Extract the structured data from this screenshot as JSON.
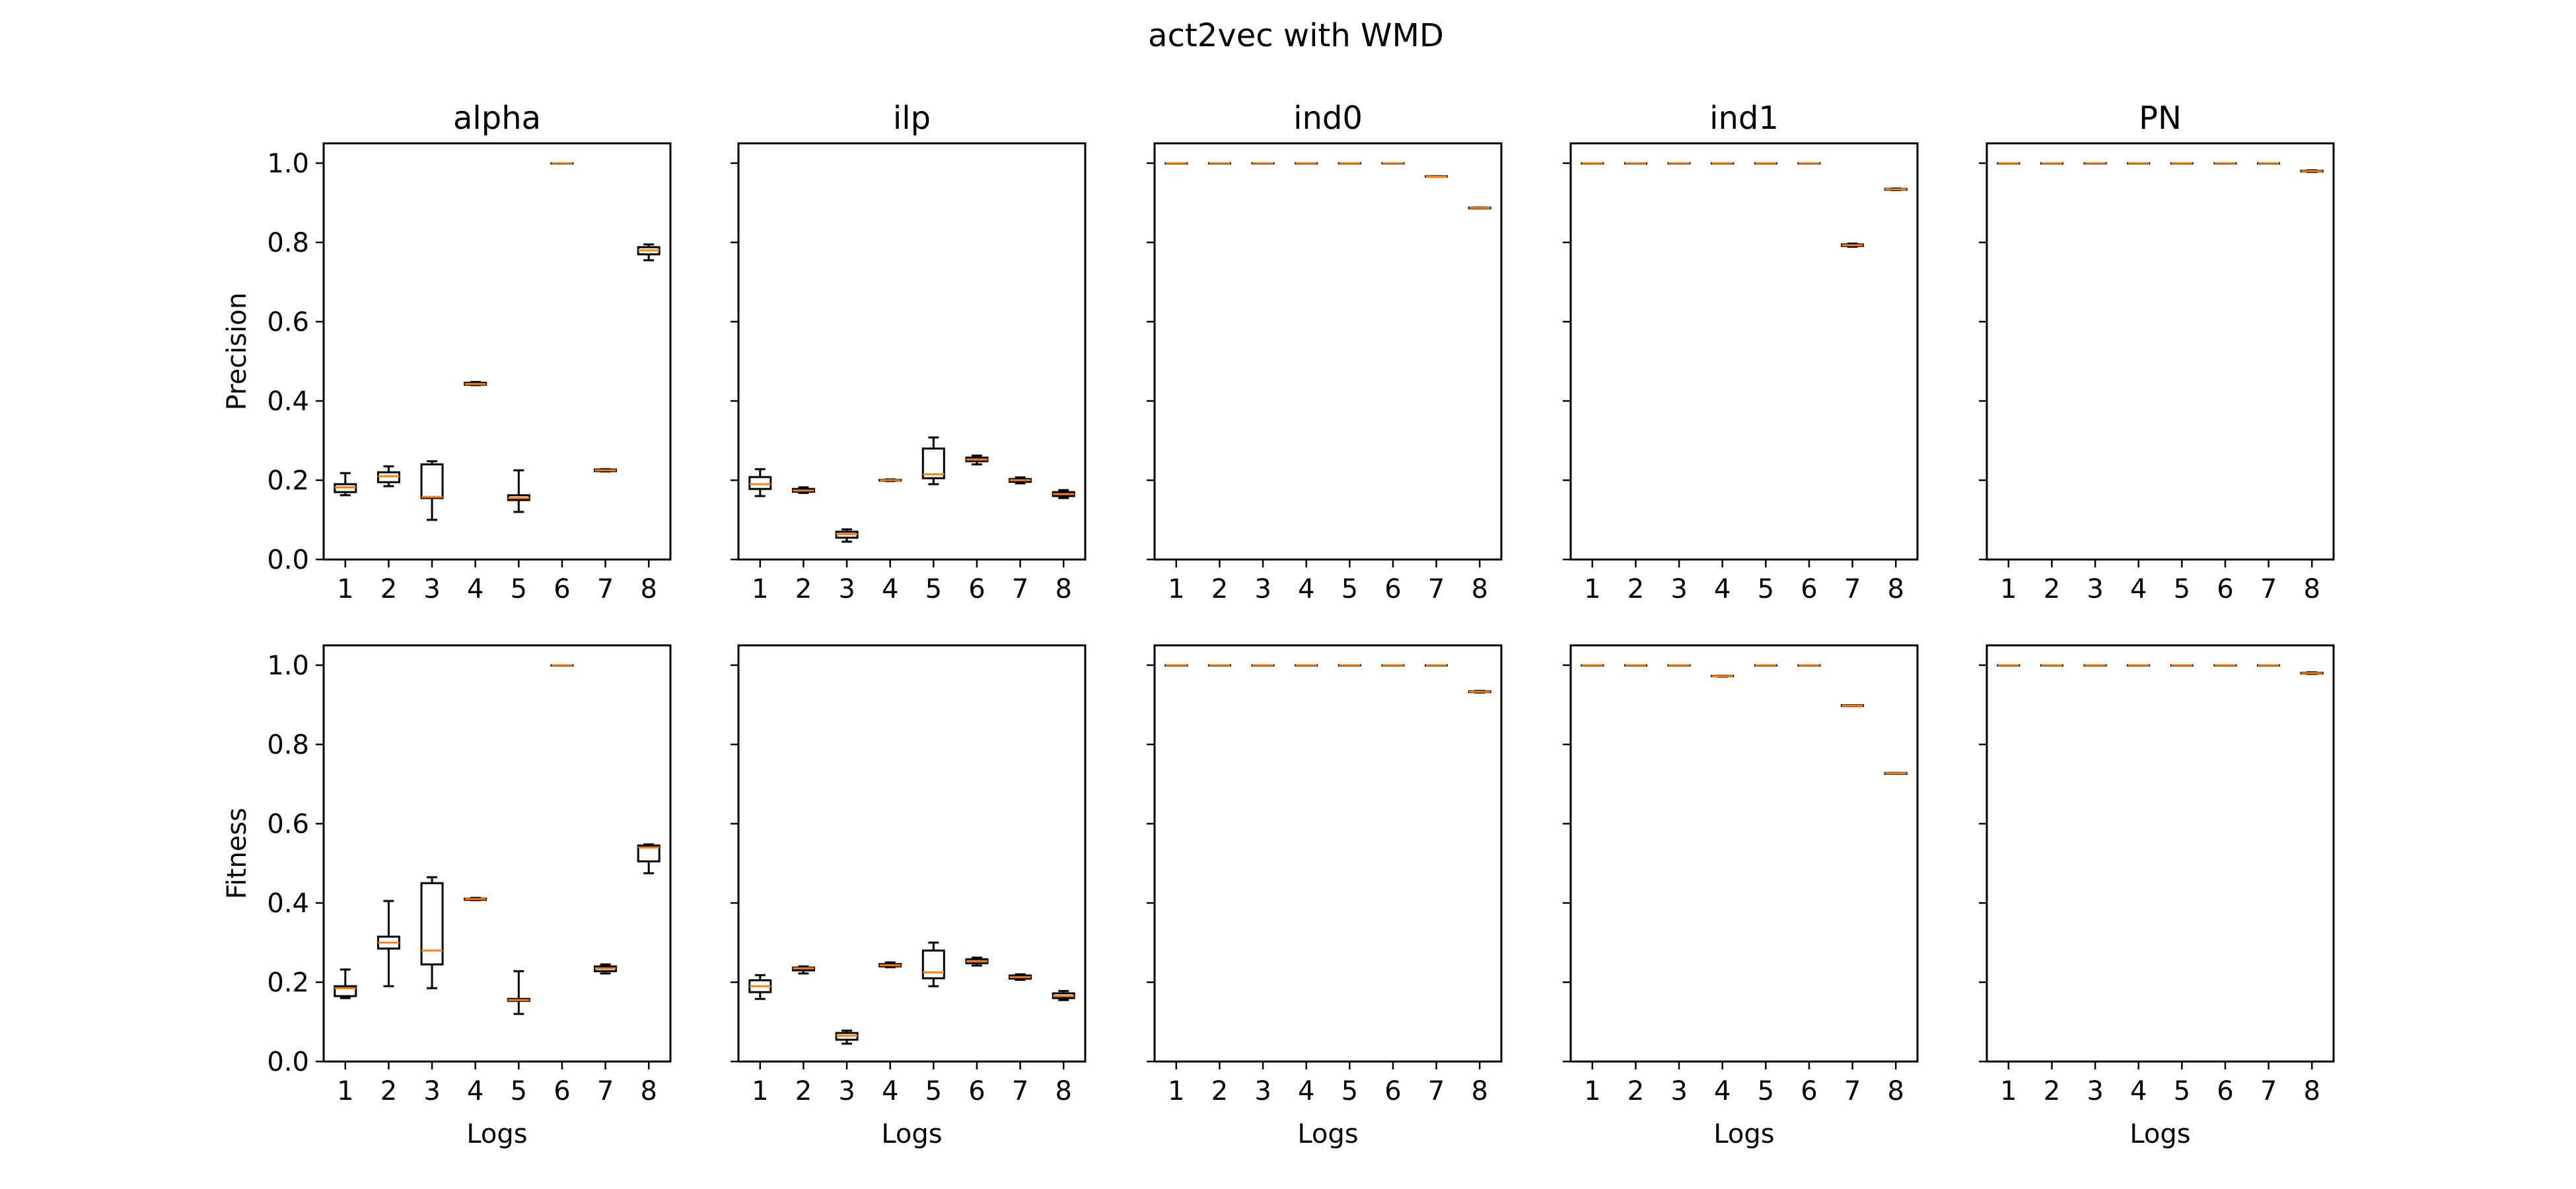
{
  "chart_data": {
    "type": "box",
    "title": "act2vec with WMD",
    "xlabel": "Logs",
    "row_labels": [
      "Precision",
      "Fitness"
    ],
    "column_titles": [
      "alpha",
      "ilp",
      "ind0",
      "ind1",
      "PN"
    ],
    "categories": [
      "1",
      "2",
      "3",
      "4",
      "5",
      "6",
      "7",
      "8"
    ],
    "ylim": [
      0,
      1.05
    ],
    "yticks": [
      "0.0",
      "0.2",
      "0.4",
      "0.6",
      "0.8",
      "1.0"
    ],
    "colors": {
      "box": "#000000",
      "median": "#ff7f0e"
    },
    "panels": {
      "Precision": {
        "alpha": [
          {
            "log": "1",
            "whislo": 0.162,
            "q1": 0.17,
            "med": 0.182,
            "q3": 0.19,
            "whishi": 0.218
          },
          {
            "log": "2",
            "whislo": 0.185,
            "q1": 0.195,
            "med": 0.21,
            "q3": 0.22,
            "whishi": 0.235
          },
          {
            "log": "3",
            "whislo": 0.1,
            "q1": 0.155,
            "med": 0.158,
            "q3": 0.24,
            "whishi": 0.248
          },
          {
            "log": "4",
            "whislo": 0.44,
            "q1": 0.441,
            "med": 0.443,
            "q3": 0.446,
            "whishi": 0.448
          },
          {
            "log": "5",
            "whislo": 0.12,
            "q1": 0.15,
            "med": 0.155,
            "q3": 0.162,
            "whishi": 0.225
          },
          {
            "log": "6",
            "whislo": 1.0,
            "q1": 1.0,
            "med": 1.0,
            "q3": 1.0,
            "whishi": 1.0
          },
          {
            "log": "7",
            "whislo": 0.222,
            "q1": 0.223,
            "med": 0.225,
            "q3": 0.227,
            "whishi": 0.228
          },
          {
            "log": "8",
            "whislo": 0.755,
            "q1": 0.77,
            "med": 0.78,
            "q3": 0.788,
            "whishi": 0.795
          }
        ],
        "ilp": [
          {
            "log": "1",
            "whislo": 0.16,
            "q1": 0.178,
            "med": 0.19,
            "q3": 0.208,
            "whishi": 0.228
          },
          {
            "log": "2",
            "whislo": 0.168,
            "q1": 0.171,
            "med": 0.174,
            "q3": 0.178,
            "whishi": 0.182
          },
          {
            "log": "3",
            "whislo": 0.045,
            "q1": 0.055,
            "med": 0.064,
            "q3": 0.07,
            "whishi": 0.076
          },
          {
            "log": "4",
            "whislo": 0.198,
            "q1": 0.199,
            "med": 0.2,
            "q3": 0.201,
            "whishi": 0.202
          },
          {
            "log": "5",
            "whislo": 0.19,
            "q1": 0.205,
            "med": 0.215,
            "q3": 0.28,
            "whishi": 0.308
          },
          {
            "log": "6",
            "whislo": 0.24,
            "q1": 0.248,
            "med": 0.252,
            "q3": 0.257,
            "whishi": 0.262
          },
          {
            "log": "7",
            "whislo": 0.192,
            "q1": 0.196,
            "med": 0.2,
            "q3": 0.203,
            "whishi": 0.207
          },
          {
            "log": "8",
            "whislo": 0.155,
            "q1": 0.16,
            "med": 0.165,
            "q3": 0.17,
            "whishi": 0.175
          }
        ],
        "ind0": [
          {
            "log": "1",
            "whislo": 1.0,
            "q1": 1.0,
            "med": 1.0,
            "q3": 1.0,
            "whishi": 1.0
          },
          {
            "log": "2",
            "whislo": 1.0,
            "q1": 1.0,
            "med": 1.0,
            "q3": 1.0,
            "whishi": 1.0
          },
          {
            "log": "3",
            "whislo": 1.0,
            "q1": 1.0,
            "med": 1.0,
            "q3": 1.0,
            "whishi": 1.0
          },
          {
            "log": "4",
            "whislo": 1.0,
            "q1": 1.0,
            "med": 1.0,
            "q3": 1.0,
            "whishi": 1.0
          },
          {
            "log": "5",
            "whislo": 1.0,
            "q1": 1.0,
            "med": 1.0,
            "q3": 1.0,
            "whishi": 1.0
          },
          {
            "log": "6",
            "whislo": 1.0,
            "q1": 1.0,
            "med": 1.0,
            "q3": 1.0,
            "whishi": 1.0
          },
          {
            "log": "7",
            "whislo": 0.966,
            "q1": 0.966,
            "med": 0.966,
            "q3": 0.967,
            "whishi": 0.967
          },
          {
            "log": "8",
            "whislo": 0.886,
            "q1": 0.886,
            "med": 0.887,
            "q3": 0.888,
            "whishi": 0.888
          }
        ],
        "ind1": [
          {
            "log": "1",
            "whislo": 1.0,
            "q1": 1.0,
            "med": 1.0,
            "q3": 1.0,
            "whishi": 1.0
          },
          {
            "log": "2",
            "whislo": 1.0,
            "q1": 1.0,
            "med": 1.0,
            "q3": 1.0,
            "whishi": 1.0
          },
          {
            "log": "3",
            "whislo": 1.0,
            "q1": 1.0,
            "med": 1.0,
            "q3": 1.0,
            "whishi": 1.0
          },
          {
            "log": "4",
            "whislo": 1.0,
            "q1": 1.0,
            "med": 1.0,
            "q3": 1.0,
            "whishi": 1.0
          },
          {
            "log": "5",
            "whislo": 1.0,
            "q1": 1.0,
            "med": 1.0,
            "q3": 1.0,
            "whishi": 1.0
          },
          {
            "log": "6",
            "whislo": 1.0,
            "q1": 1.0,
            "med": 1.0,
            "q3": 1.0,
            "whishi": 1.0
          },
          {
            "log": "7",
            "whislo": 0.789,
            "q1": 0.791,
            "med": 0.793,
            "q3": 0.795,
            "whishi": 0.797
          },
          {
            "log": "8",
            "whislo": 0.932,
            "q1": 0.933,
            "med": 0.934,
            "q3": 0.935,
            "whishi": 0.936
          }
        ],
        "PN": [
          {
            "log": "1",
            "whislo": 1.0,
            "q1": 1.0,
            "med": 1.0,
            "q3": 1.0,
            "whishi": 1.0
          },
          {
            "log": "2",
            "whislo": 1.0,
            "q1": 1.0,
            "med": 1.0,
            "q3": 1.0,
            "whishi": 1.0
          },
          {
            "log": "3",
            "whislo": 1.0,
            "q1": 1.0,
            "med": 1.0,
            "q3": 1.0,
            "whishi": 1.0
          },
          {
            "log": "4",
            "whislo": 1.0,
            "q1": 1.0,
            "med": 1.0,
            "q3": 1.0,
            "whishi": 1.0
          },
          {
            "log": "5",
            "whislo": 1.0,
            "q1": 1.0,
            "med": 1.0,
            "q3": 1.0,
            "whishi": 1.0
          },
          {
            "log": "6",
            "whislo": 1.0,
            "q1": 1.0,
            "med": 1.0,
            "q3": 1.0,
            "whishi": 1.0
          },
          {
            "log": "7",
            "whislo": 1.0,
            "q1": 1.0,
            "med": 1.0,
            "q3": 1.0,
            "whishi": 1.0
          },
          {
            "log": "8",
            "whislo": 0.978,
            "q1": 0.979,
            "med": 0.98,
            "q3": 0.981,
            "whishi": 0.982
          }
        ]
      },
      "Fitness": {
        "alpha": [
          {
            "log": "1",
            "whislo": 0.16,
            "q1": 0.165,
            "med": 0.185,
            "q3": 0.19,
            "whishi": 0.232
          },
          {
            "log": "2",
            "whislo": 0.19,
            "q1": 0.285,
            "med": 0.3,
            "q3": 0.315,
            "whishi": 0.405
          },
          {
            "log": "3",
            "whislo": 0.185,
            "q1": 0.245,
            "med": 0.28,
            "q3": 0.45,
            "whishi": 0.465
          },
          {
            "log": "4",
            "whislo": 0.407,
            "q1": 0.408,
            "med": 0.41,
            "q3": 0.411,
            "whishi": 0.413
          },
          {
            "log": "5",
            "whislo": 0.12,
            "q1": 0.153,
            "med": 0.155,
            "q3": 0.158,
            "whishi": 0.228
          },
          {
            "log": "6",
            "whislo": 1.0,
            "q1": 1.0,
            "med": 1.0,
            "q3": 1.0,
            "whishi": 1.0
          },
          {
            "log": "7",
            "whislo": 0.222,
            "q1": 0.228,
            "med": 0.235,
            "q3": 0.24,
            "whishi": 0.245
          },
          {
            "log": "8",
            "whislo": 0.475,
            "q1": 0.505,
            "med": 0.54,
            "q3": 0.545,
            "whishi": 0.548
          }
        ],
        "ilp": [
          {
            "log": "1",
            "whislo": 0.158,
            "q1": 0.175,
            "med": 0.19,
            "q3": 0.205,
            "whishi": 0.218
          },
          {
            "log": "2",
            "whislo": 0.222,
            "q1": 0.23,
            "med": 0.235,
            "q3": 0.237,
            "whishi": 0.24
          },
          {
            "log": "3",
            "whislo": 0.045,
            "q1": 0.055,
            "med": 0.065,
            "q3": 0.072,
            "whishi": 0.078
          },
          {
            "log": "4",
            "whislo": 0.238,
            "q1": 0.24,
            "med": 0.243,
            "q3": 0.246,
            "whishi": 0.25
          },
          {
            "log": "5",
            "whislo": 0.19,
            "q1": 0.21,
            "med": 0.225,
            "q3": 0.28,
            "whishi": 0.3
          },
          {
            "log": "6",
            "whislo": 0.242,
            "q1": 0.248,
            "med": 0.253,
            "q3": 0.258,
            "whishi": 0.262
          },
          {
            "log": "7",
            "whislo": 0.206,
            "q1": 0.209,
            "med": 0.213,
            "q3": 0.217,
            "whishi": 0.22
          },
          {
            "log": "8",
            "whislo": 0.155,
            "q1": 0.16,
            "med": 0.165,
            "q3": 0.172,
            "whishi": 0.178
          }
        ],
        "ind0": [
          {
            "log": "1",
            "whislo": 1.0,
            "q1": 1.0,
            "med": 1.0,
            "q3": 1.0,
            "whishi": 1.0
          },
          {
            "log": "2",
            "whislo": 1.0,
            "q1": 1.0,
            "med": 1.0,
            "q3": 1.0,
            "whishi": 1.0
          },
          {
            "log": "3",
            "whislo": 1.0,
            "q1": 1.0,
            "med": 1.0,
            "q3": 1.0,
            "whishi": 1.0
          },
          {
            "log": "4",
            "whislo": 1.0,
            "q1": 1.0,
            "med": 1.0,
            "q3": 1.0,
            "whishi": 1.0
          },
          {
            "log": "5",
            "whislo": 1.0,
            "q1": 1.0,
            "med": 1.0,
            "q3": 1.0,
            "whishi": 1.0
          },
          {
            "log": "6",
            "whislo": 1.0,
            "q1": 1.0,
            "med": 1.0,
            "q3": 1.0,
            "whishi": 1.0
          },
          {
            "log": "7",
            "whislo": 1.0,
            "q1": 1.0,
            "med": 1.0,
            "q3": 1.0,
            "whishi": 1.0
          },
          {
            "log": "8",
            "whislo": 0.931,
            "q1": 0.932,
            "med": 0.933,
            "q3": 0.934,
            "whishi": 0.935
          }
        ],
        "ind1": [
          {
            "log": "1",
            "whislo": 1.0,
            "q1": 1.0,
            "med": 1.0,
            "q3": 1.0,
            "whishi": 1.0
          },
          {
            "log": "2",
            "whislo": 1.0,
            "q1": 1.0,
            "med": 1.0,
            "q3": 1.0,
            "whishi": 1.0
          },
          {
            "log": "3",
            "whislo": 1.0,
            "q1": 1.0,
            "med": 1.0,
            "q3": 1.0,
            "whishi": 1.0
          },
          {
            "log": "4",
            "whislo": 0.971,
            "q1": 0.972,
            "med": 0.972,
            "q3": 0.973,
            "whishi": 0.973
          },
          {
            "log": "5",
            "whislo": 1.0,
            "q1": 1.0,
            "med": 1.0,
            "q3": 1.0,
            "whishi": 1.0
          },
          {
            "log": "6",
            "whislo": 1.0,
            "q1": 1.0,
            "med": 1.0,
            "q3": 1.0,
            "whishi": 1.0
          },
          {
            "log": "7",
            "whislo": 0.897,
            "q1": 0.897,
            "med": 0.898,
            "q3": 0.899,
            "whishi": 0.899
          },
          {
            "log": "8",
            "whislo": 0.726,
            "q1": 0.726,
            "med": 0.727,
            "q3": 0.728,
            "whishi": 0.728
          }
        ],
        "PN": [
          {
            "log": "1",
            "whislo": 1.0,
            "q1": 1.0,
            "med": 1.0,
            "q3": 1.0,
            "whishi": 1.0
          },
          {
            "log": "2",
            "whislo": 1.0,
            "q1": 1.0,
            "med": 1.0,
            "q3": 1.0,
            "whishi": 1.0
          },
          {
            "log": "3",
            "whislo": 1.0,
            "q1": 1.0,
            "med": 1.0,
            "q3": 1.0,
            "whishi": 1.0
          },
          {
            "log": "4",
            "whislo": 1.0,
            "q1": 1.0,
            "med": 1.0,
            "q3": 1.0,
            "whishi": 1.0
          },
          {
            "log": "5",
            "whislo": 1.0,
            "q1": 1.0,
            "med": 1.0,
            "q3": 1.0,
            "whishi": 1.0
          },
          {
            "log": "6",
            "whislo": 1.0,
            "q1": 1.0,
            "med": 1.0,
            "q3": 1.0,
            "whishi": 1.0
          },
          {
            "log": "7",
            "whislo": 1.0,
            "q1": 1.0,
            "med": 1.0,
            "q3": 1.0,
            "whishi": 1.0
          },
          {
            "log": "8",
            "whislo": 0.978,
            "q1": 0.979,
            "med": 0.98,
            "q3": 0.981,
            "whishi": 0.982
          }
        ]
      }
    }
  }
}
